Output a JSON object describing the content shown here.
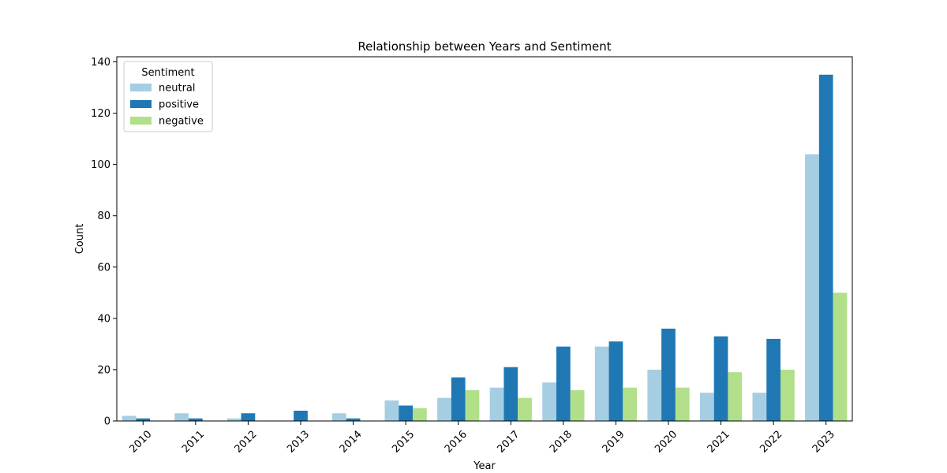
{
  "chart_data": {
    "type": "bar",
    "title": "Relationship between Years and Sentiment",
    "xlabel": "Year",
    "ylabel": "Count",
    "ylim": [
      0,
      142
    ],
    "yticks": [
      0,
      20,
      40,
      60,
      80,
      100,
      120,
      140
    ],
    "categories": [
      "2010",
      "2011",
      "2012",
      "2013",
      "2014",
      "2015",
      "2016",
      "2017",
      "2018",
      "2019",
      "2020",
      "2021",
      "2022",
      "2023"
    ],
    "series": [
      {
        "name": "neutral",
        "color": "#a6cee3",
        "values": [
          2,
          3,
          1,
          0,
          3,
          8,
          9,
          13,
          15,
          29,
          20,
          11,
          11,
          104
        ]
      },
      {
        "name": "positive",
        "color": "#1f78b4",
        "values": [
          1,
          1,
          3,
          4,
          1,
          6,
          17,
          21,
          29,
          31,
          36,
          33,
          32,
          135
        ]
      },
      {
        "name": "negative",
        "color": "#b2df8a",
        "values": [
          0,
          0,
          0,
          0,
          0,
          5,
          12,
          9,
          12,
          13,
          13,
          19,
          20,
          50
        ]
      }
    ],
    "legend": {
      "title": "Sentiment",
      "position": "top-left"
    },
    "grid": false
  }
}
